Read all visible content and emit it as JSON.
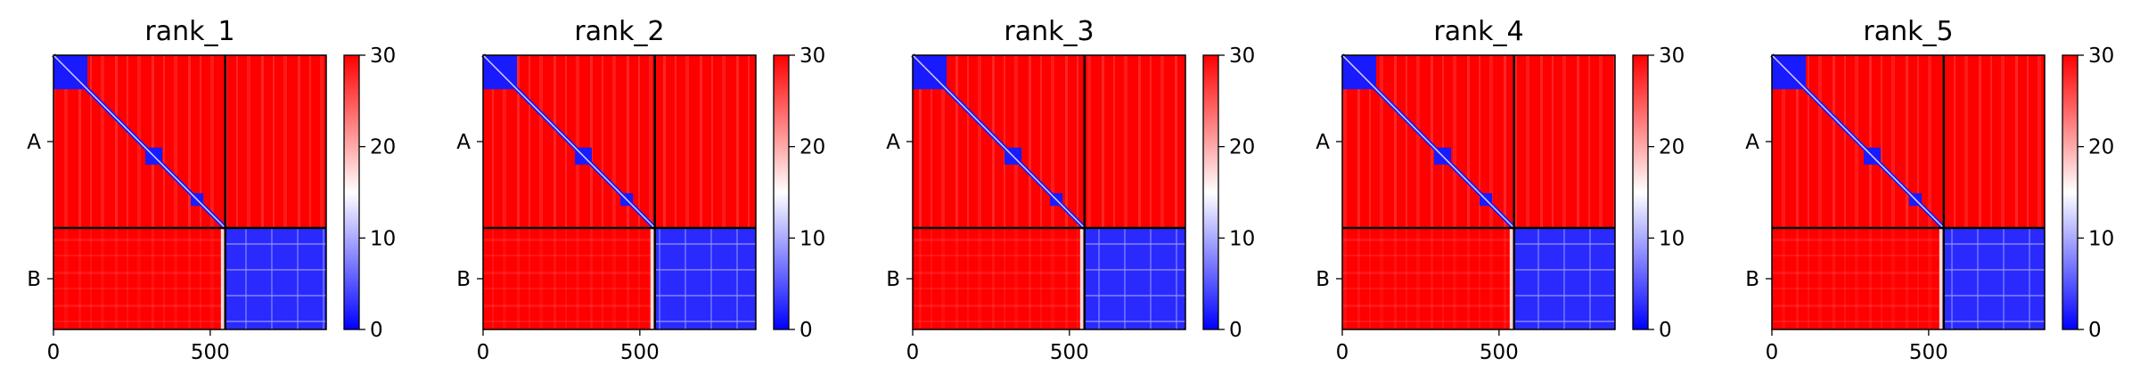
{
  "chart_data": [
    {
      "type": "heatmap",
      "title": "rank_1",
      "x_ticks": [
        0,
        500
      ],
      "y_ticks": [
        "A",
        "B"
      ],
      "x_range": [
        0,
        870
      ],
      "chain_boundary": 548,
      "colorbar": {
        "range": [
          0,
          30
        ],
        "ticks": [
          0,
          10,
          20,
          30
        ],
        "colors": [
          "#0000ff",
          "#ffffff",
          "#ff0000"
        ]
      },
      "diagonal_blocks": [
        [
          0,
          108
        ],
        [
          293,
          347
        ],
        [
          438,
          478
        ],
        [
          548,
          870
        ]
      ]
    },
    {
      "type": "heatmap",
      "title": "rank_2",
      "x_ticks": [
        0,
        500
      ],
      "y_ticks": [
        "A",
        "B"
      ],
      "x_range": [
        0,
        870
      ],
      "chain_boundary": 548,
      "colorbar": {
        "range": [
          0,
          30
        ],
        "ticks": [
          0,
          10,
          20,
          30
        ],
        "colors": [
          "#0000ff",
          "#ffffff",
          "#ff0000"
        ]
      },
      "diagonal_blocks": [
        [
          0,
          108
        ],
        [
          293,
          347
        ],
        [
          438,
          478
        ],
        [
          548,
          870
        ]
      ]
    },
    {
      "type": "heatmap",
      "title": "rank_3",
      "x_ticks": [
        0,
        500
      ],
      "y_ticks": [
        "A",
        "B"
      ],
      "x_range": [
        0,
        870
      ],
      "chain_boundary": 548,
      "colorbar": {
        "range": [
          0,
          30
        ],
        "ticks": [
          0,
          10,
          20,
          30
        ],
        "colors": [
          "#0000ff",
          "#ffffff",
          "#ff0000"
        ]
      },
      "diagonal_blocks": [
        [
          0,
          108
        ],
        [
          293,
          347
        ],
        [
          438,
          478
        ],
        [
          548,
          870
        ]
      ]
    },
    {
      "type": "heatmap",
      "title": "rank_4",
      "x_ticks": [
        0,
        500
      ],
      "y_ticks": [
        "A",
        "B"
      ],
      "x_range": [
        0,
        870
      ],
      "chain_boundary": 548,
      "colorbar": {
        "range": [
          0,
          30
        ],
        "ticks": [
          0,
          10,
          20,
          30
        ],
        "colors": [
          "#0000ff",
          "#ffffff",
          "#ff0000"
        ]
      },
      "diagonal_blocks": [
        [
          0,
          108
        ],
        [
          293,
          347
        ],
        [
          438,
          478
        ],
        [
          548,
          870
        ]
      ]
    },
    {
      "type": "heatmap",
      "title": "rank_5",
      "x_ticks": [
        0,
        500
      ],
      "y_ticks": [
        "A",
        "B"
      ],
      "x_range": [
        0,
        870
      ],
      "chain_boundary": 548,
      "colorbar": {
        "range": [
          0,
          30
        ],
        "ticks": [
          0,
          10,
          20,
          30
        ],
        "colors": [
          "#0000ff",
          "#ffffff",
          "#ff0000"
        ]
      },
      "diagonal_blocks": [
        [
          0,
          108
        ],
        [
          293,
          347
        ],
        [
          438,
          478
        ],
        [
          548,
          870
        ]
      ]
    }
  ]
}
